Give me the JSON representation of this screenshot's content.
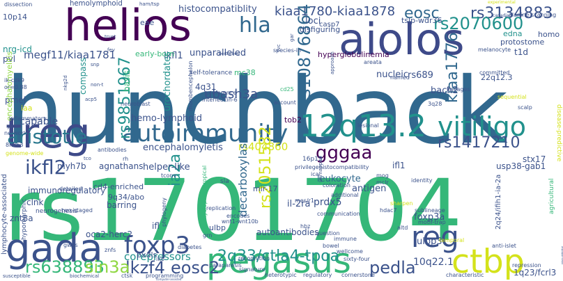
{
  "title": "",
  "palette": {
    "dark_purple": "#440154",
    "indigo": "#3b528b",
    "steel_blue": "#31688e",
    "teal": "#21918c",
    "green": "#35b779",
    "lime": "#90d743",
    "yellow": "#d4e21b",
    "blue_gray": "#31688e"
  },
  "words": [
    {
      "text": "hunchback",
      "color": "#31688e"
    },
    {
      "text": "rs1701704",
      "color": "#35b779"
    },
    {
      "text": "helios",
      "color": "#440154"
    },
    {
      "text": "aiolos",
      "color": "#3e4a89"
    },
    {
      "text": "pegasus",
      "color": "#35b779"
    },
    {
      "text": "gada",
      "color": "#3b528b"
    },
    {
      "text": "treg",
      "color": "#3e4a89"
    },
    {
      "text": "ctbp",
      "color": "#d4e21b"
    },
    {
      "text": "12q13.2",
      "color": "#21918c"
    },
    {
      "text": "autoimmunity",
      "color": "#31688e"
    },
    {
      "text": "vitiligo",
      "color": "#21918c"
    },
    {
      "text": "hla",
      "color": "#31688e"
    },
    {
      "text": "foxp3",
      "color": "#3b528b"
    },
    {
      "text": "reg",
      "color": "#3b528b"
    },
    {
      "text": "aristotle",
      "color": "#2a788e"
    },
    {
      "text": "rs3134883",
      "color": "#3b528b"
    },
    {
      "text": "rs2070600",
      "color": "#21918c"
    },
    {
      "text": "eosc",
      "color": "#31688e"
    },
    {
      "text": "kiaa1780-kiaa1878",
      "color": "#3b528b"
    },
    {
      "text": "rs10876864",
      "color": "#31688e"
    },
    {
      "text": "rs9851967",
      "color": "#21918c"
    },
    {
      "text": "kiaa1776",
      "color": "#31688e"
    },
    {
      "text": "rs1417210",
      "color": "#3b528b"
    },
    {
      "text": "ikfl2",
      "color": "#3b528b"
    },
    {
      "text": "gggaa",
      "color": "#440154"
    },
    {
      "text": "rs2051582",
      "color": "#d4e21b"
    },
    {
      "text": "ia2a",
      "color": "#21918c"
    },
    {
      "text": "lkzf4",
      "color": "#3b528b"
    },
    {
      "text": "eosc2",
      "color": "#3b528b"
    },
    {
      "text": "2q33/ctla4-tpoa",
      "color": "#21918c"
    },
    {
      "text": "pedla",
      "color": "#3b528b"
    },
    {
      "text": "rs638893",
      "color": "#35b779"
    },
    {
      "text": "sin3a",
      "color": "#90d743"
    },
    {
      "text": "hemo-lymphoid",
      "color": "#3b528b"
    },
    {
      "text": "histocompatiblity",
      "color": "#3b528b"
    },
    {
      "text": "hemolymphoid",
      "color": "#3b528b"
    },
    {
      "text": "megf11/kiaa1781",
      "color": "#3b528b"
    },
    {
      "text": "unparalleled",
      "color": "#3b528b"
    },
    {
      "text": "ubash3a",
      "color": "#3b528b"
    },
    {
      "text": "encephalomyletis",
      "color": "#3b528b"
    },
    {
      "text": "rs404860",
      "color": "#d4e21b"
    },
    {
      "text": "corepressors",
      "color": "#21918c"
    },
    {
      "text": "10q22.1",
      "color": "#3b528b"
    },
    {
      "text": "1q23/fcrl3",
      "color": "#3b528b"
    },
    {
      "text": "decarboxylase",
      "color": "#31688e"
    },
    {
      "text": "leukocyte",
      "color": "#31688e"
    },
    {
      "text": "prdx5",
      "color": "#3b528b"
    },
    {
      "text": "antigen",
      "color": "#3b528b"
    },
    {
      "text": "foxp3a",
      "color": "#3b528b"
    },
    {
      "text": "ulbp3",
      "color": "#3b528b"
    },
    {
      "text": "bach2",
      "color": "#3b528b"
    },
    {
      "text": "tob2",
      "color": "#440154"
    },
    {
      "text": "ifl1",
      "color": "#3b528b"
    },
    {
      "text": "stx17",
      "color": "#3b528b"
    },
    {
      "text": "rs689",
      "color": "#3b528b"
    },
    {
      "text": "t1d",
      "color": "#3b528b"
    },
    {
      "text": "edna",
      "color": "#21918c"
    },
    {
      "text": "protostome",
      "color": "#3b528b"
    },
    {
      "text": "homo",
      "color": "#3b528b"
    },
    {
      "text": "loci",
      "color": "#3b528b"
    },
    {
      "text": "casp7",
      "color": "#3b528b"
    },
    {
      "text": "disfiguring",
      "color": "#3b528b"
    },
    {
      "text": "tslp-wdr36",
      "color": "#3b528b"
    },
    {
      "text": "hyperglobulinemia",
      "color": "#440154"
    },
    {
      "text": "ikfl1",
      "color": "#3b528b"
    },
    {
      "text": "early-born",
      "color": "#35b779"
    },
    {
      "text": "pvl",
      "color": "#3b528b"
    },
    {
      "text": "nrg-icd",
      "color": "#21918c"
    },
    {
      "text": "10p14",
      "color": "#3b528b"
    },
    {
      "text": "eae",
      "color": "#3b528b"
    },
    {
      "text": "capable",
      "color": "#3b528b"
    },
    {
      "text": "pmel",
      "color": "#3b528b"
    },
    {
      "text": "myh7b",
      "color": "#3b528b"
    },
    {
      "text": "agnathans",
      "color": "#3b528b"
    },
    {
      "text": "helper-like",
      "color": "#3b528b"
    },
    {
      "text": "cd4-enriched",
      "color": "#3b528b"
    },
    {
      "text": "immunoregulatory",
      "color": "#3b528b"
    },
    {
      "text": "barring",
      "color": "#3b528b"
    },
    {
      "text": "clnk",
      "color": "#3b528b"
    },
    {
      "text": "znt8a",
      "color": "#3b528b"
    },
    {
      "text": "oca2-herc2",
      "color": "#3b528b"
    },
    {
      "text": "pxdls",
      "color": "#3b528b"
    },
    {
      "text": "ifl",
      "color": "#3b528b"
    },
    {
      "text": "ulbp",
      "color": "#3b528b"
    },
    {
      "text": "il-2ra",
      "color": "#3b528b"
    },
    {
      "text": "mir-17",
      "color": "#3b528b"
    },
    {
      "text": "9q34/abo",
      "color": "#3b528b"
    },
    {
      "text": "autoantibodies",
      "color": "#3b528b"
    },
    {
      "text": "2q24/ifih1-ia-2a",
      "color": "#3b528b"
    },
    {
      "text": "usp38-gab1",
      "color": "#3b528b"
    },
    {
      "text": "nucleic",
      "color": "#3b528b"
    },
    {
      "text": "22q12.3",
      "color": "#3b528b"
    },
    {
      "text": "compass",
      "color": "#21918c"
    },
    {
      "text": "basis",
      "color": "#35b779"
    },
    {
      "text": "urochordates",
      "color": "#21918c"
    },
    {
      "text": "4q31",
      "color": "#3b528b"
    },
    {
      "text": "mc38",
      "color": "#35b779"
    },
    {
      "text": "encephalomyelitis",
      "color": "#90d743"
    },
    {
      "text": "lymphocyte-associated",
      "color": "#3b528b"
    },
    {
      "text": "neurogenesis",
      "color": "#3b528b"
    },
    {
      "text": "hypomorphic",
      "color": "#3b528b"
    },
    {
      "text": "iaa",
      "color": "#d4e21b"
    },
    {
      "text": "dissection",
      "color": "#3b528b"
    },
    {
      "text": "ik-cdk9",
      "color": "#3b528b"
    },
    {
      "text": "or=0.88",
      "color": "#3b528b"
    },
    {
      "text": "inflammatory",
      "color": "#3b528b"
    },
    {
      "text": "network",
      "color": "#3b528b"
    },
    {
      "text": "y2h",
      "color": "#3b528b"
    },
    {
      "text": "8h2b3",
      "color": "#3b528b"
    },
    {
      "text": "genome-wide",
      "color": "#d4e21b"
    },
    {
      "text": "sequential",
      "color": "#d4e21b"
    },
    {
      "text": "lineages",
      "color": "#3b528b"
    },
    {
      "text": "scalp",
      "color": "#3b528b"
    },
    {
      "text": "committed",
      "color": "#3b528b"
    },
    {
      "text": "melanocyte",
      "color": "#3b528b"
    },
    {
      "text": "areata",
      "color": "#3b528b"
    },
    {
      "text": "species-in",
      "color": "#3b528b"
    },
    {
      "text": "self-tolerance",
      "color": "#3b528b"
    },
    {
      "text": "preference",
      "color": "#3b528b"
    },
    {
      "text": "interleukin-6",
      "color": "#3b528b"
    },
    {
      "text": "account",
      "color": "#3b528b"
    },
    {
      "text": "named",
      "color": "#3b528b"
    },
    {
      "text": "rhombencephalon",
      "color": "#3b528b"
    },
    {
      "text": "cd25",
      "color": "#35b779"
    },
    {
      "text": "3q28",
      "color": "#3b528b"
    },
    {
      "text": "lesional",
      "color": "#3b528b"
    },
    {
      "text": "histocompatibility",
      "color": "#3b528b"
    },
    {
      "text": "privilege",
      "color": "#3b528b"
    },
    {
      "text": "16p13",
      "color": "#3b528b"
    },
    {
      "text": "coloration",
      "color": "#3b528b"
    },
    {
      "text": "additional",
      "color": "#3b528b"
    },
    {
      "text": "communication",
      "color": "#3b528b"
    },
    {
      "text": "mes/r1",
      "color": "#3b528b"
    },
    {
      "text": "mog",
      "color": "#3b528b"
    },
    {
      "text": "mclr",
      "color": "#3b528b"
    },
    {
      "text": "identity",
      "color": "#3b528b"
    },
    {
      "text": "sharpen",
      "color": "#d4e21b"
    },
    {
      "text": "sublineage",
      "color": "#3b528b"
    },
    {
      "text": "motif-trap",
      "color": "#3b528b"
    },
    {
      "text": "anti-islet",
      "color": "#3b528b"
    },
    {
      "text": "temporal",
      "color": "#d4e21b"
    },
    {
      "text": "hdac7",
      "color": "#3b528b"
    },
    {
      "text": "altd",
      "color": "#3b528b"
    },
    {
      "text": "repression",
      "color": "#3b528b"
    },
    {
      "text": "characteristic",
      "color": "#3b528b"
    },
    {
      "text": "cornerstone",
      "color": "#3b528b"
    },
    {
      "text": "regulatory",
      "color": "#3b528b"
    },
    {
      "text": "heterotypic",
      "color": "#3b528b"
    },
    {
      "text": "signature",
      "color": "#3b528b"
    },
    {
      "text": "paraparesis",
      "color": "#3b528b"
    },
    {
      "text": "sixty-four",
      "color": "#3b528b"
    },
    {
      "text": "wellcome",
      "color": "#3b528b"
    },
    {
      "text": "bowel",
      "color": "#3b528b"
    },
    {
      "text": "immune",
      "color": "#3b528b"
    },
    {
      "text": "question",
      "color": "#3b528b"
    },
    {
      "text": "recognition",
      "color": "#3b528b"
    },
    {
      "text": "replication",
      "color": "#3b528b"
    },
    {
      "text": "encodes",
      "color": "#3b528b"
    },
    {
      "text": "wnt1-wnt10b",
      "color": "#3b528b"
    },
    {
      "text": "myelopathy/tropical",
      "color": "#35b779"
    },
    {
      "text": "phylogeny",
      "color": "#3b528b"
    },
    {
      "text": "tconv",
      "color": "#3b528b"
    },
    {
      "text": "antibodies",
      "color": "#3b528b"
    },
    {
      "text": "neuroblast",
      "color": "#3b528b"
    },
    {
      "text": "diabetes",
      "color": "#3b528b"
    },
    {
      "text": "grn",
      "color": "#3b528b"
    },
    {
      "text": "ik6",
      "color": "#3b528b"
    },
    {
      "text": "programming",
      "color": "#3b528b"
    },
    {
      "text": "ctsk",
      "color": "#3b528b"
    },
    {
      "text": "znfs",
      "color": "#3b528b"
    },
    {
      "text": "two-staged",
      "color": "#3b528b"
    },
    {
      "text": "detailed",
      "color": "#3b528b"
    },
    {
      "text": "gwas",
      "color": "#3b528b"
    },
    {
      "text": "susceptible",
      "color": "#3b528b"
    },
    {
      "text": "biochemical",
      "color": "#3b528b"
    },
    {
      "text": "computer-assisted",
      "color": "#3b528b"
    },
    {
      "text": "disease-predictive",
      "color": "#d4e21b"
    },
    {
      "text": "agricultural",
      "color": "#35b779"
    },
    {
      "text": "neuro-detective",
      "color": "#3b528b"
    },
    {
      "text": "alanine-scanning",
      "color": "#3b528b"
    },
    {
      "text": "canadian",
      "color": "#3b528b"
    },
    {
      "text": "experimental",
      "color": "#d4e21b"
    },
    {
      "text": "ham/tsp",
      "color": "#3b528b"
    },
    {
      "text": "trust",
      "color": "#3b528b"
    },
    {
      "text": "perturbed",
      "color": "#3b528b"
    },
    {
      "text": "fvc",
      "color": "#3b528b"
    },
    {
      "text": "gar",
      "color": "#3b528b"
    },
    {
      "text": "approach",
      "color": "#3b528b"
    },
    {
      "text": "fev",
      "color": "#3b528b"
    },
    {
      "text": "snp",
      "color": "#3b528b"
    },
    {
      "text": "nkg2d",
      "color": "#3b528b"
    },
    {
      "text": "non-t",
      "color": "#3b528b"
    },
    {
      "text": "acp5",
      "color": "#3b528b"
    },
    {
      "text": "rh",
      "color": "#3b528b"
    },
    {
      "text": "tco",
      "color": "#3b528b"
    },
    {
      "text": "unmapped",
      "color": "#3b528b"
    },
    {
      "text": "ica",
      "color": "#3b528b"
    },
    {
      "text": "sla",
      "color": "#3b528b"
    },
    {
      "text": "hbz",
      "color": "#3b528b"
    }
  ]
}
